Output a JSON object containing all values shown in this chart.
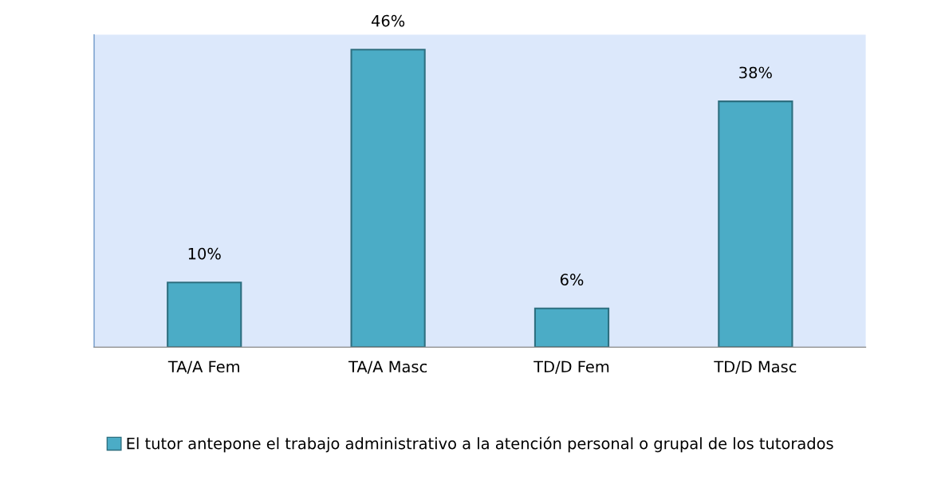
{
  "chart_data": {
    "type": "bar",
    "categories": [
      "TA/A Fem",
      "TA/A Masc",
      "TD/D Fem",
      "TD/D Masc"
    ],
    "series": [
      {
        "name": "El tutor antepone el trabajo administrativo a la atención personal o grupal de los tutorados",
        "color": "#4bacc6",
        "values": [
          10,
          46,
          6,
          38
        ],
        "value_labels": [
          "10%",
          "46%",
          "6%",
          "38%"
        ]
      }
    ],
    "legend": "bottom",
    "grid": false
  }
}
